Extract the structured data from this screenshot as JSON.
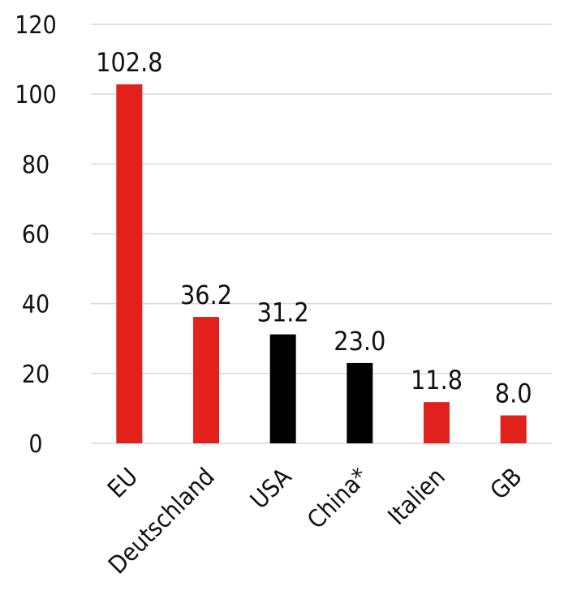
{
  "chart_data": {
    "type": "bar",
    "title": "",
    "xlabel": "",
    "ylabel": "",
    "ylim": [
      0,
      120
    ],
    "yticks": [
      0,
      20,
      40,
      60,
      80,
      100,
      120
    ],
    "grid": true,
    "categories": [
      "EU",
      "Deutschland",
      "USA",
      "China*",
      "Italien",
      "GB"
    ],
    "values": [
      102.8,
      36.2,
      31.2,
      23.0,
      11.8,
      8.0
    ],
    "value_labels": [
      "102.8",
      "36.2",
      "31.2",
      "23.0",
      "11.8",
      "8.0"
    ],
    "colors": [
      "#e3211c",
      "#e3211c",
      "#000000",
      "#000000",
      "#e3211c",
      "#e3211c"
    ]
  }
}
